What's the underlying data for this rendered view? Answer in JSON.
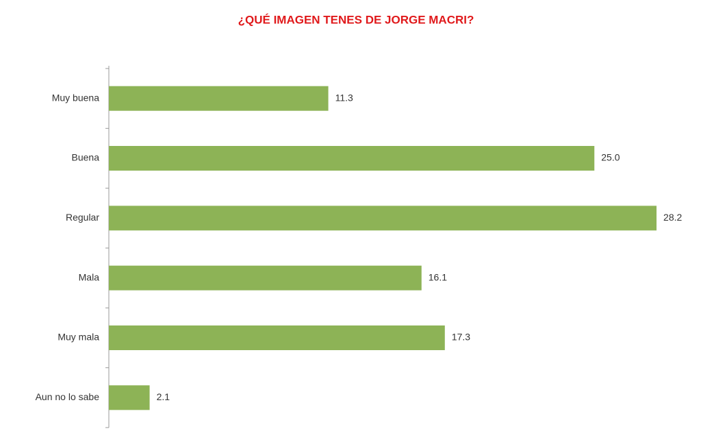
{
  "chart_data": {
    "type": "bar",
    "orientation": "horizontal",
    "title": "¿QUÉ IMAGEN TENES DE JORGE MACRI?",
    "categories": [
      "Muy buena",
      "Buena",
      "Regular",
      "Mala",
      "Muy mala",
      "Aun no lo sabe"
    ],
    "values": [
      11.3,
      25.0,
      28.2,
      16.1,
      17.3,
      2.1
    ],
    "value_labels": [
      "11.3",
      "25.0",
      "28.2",
      "16.1",
      "17.3",
      "2.1"
    ],
    "color": "#8db356"
  }
}
